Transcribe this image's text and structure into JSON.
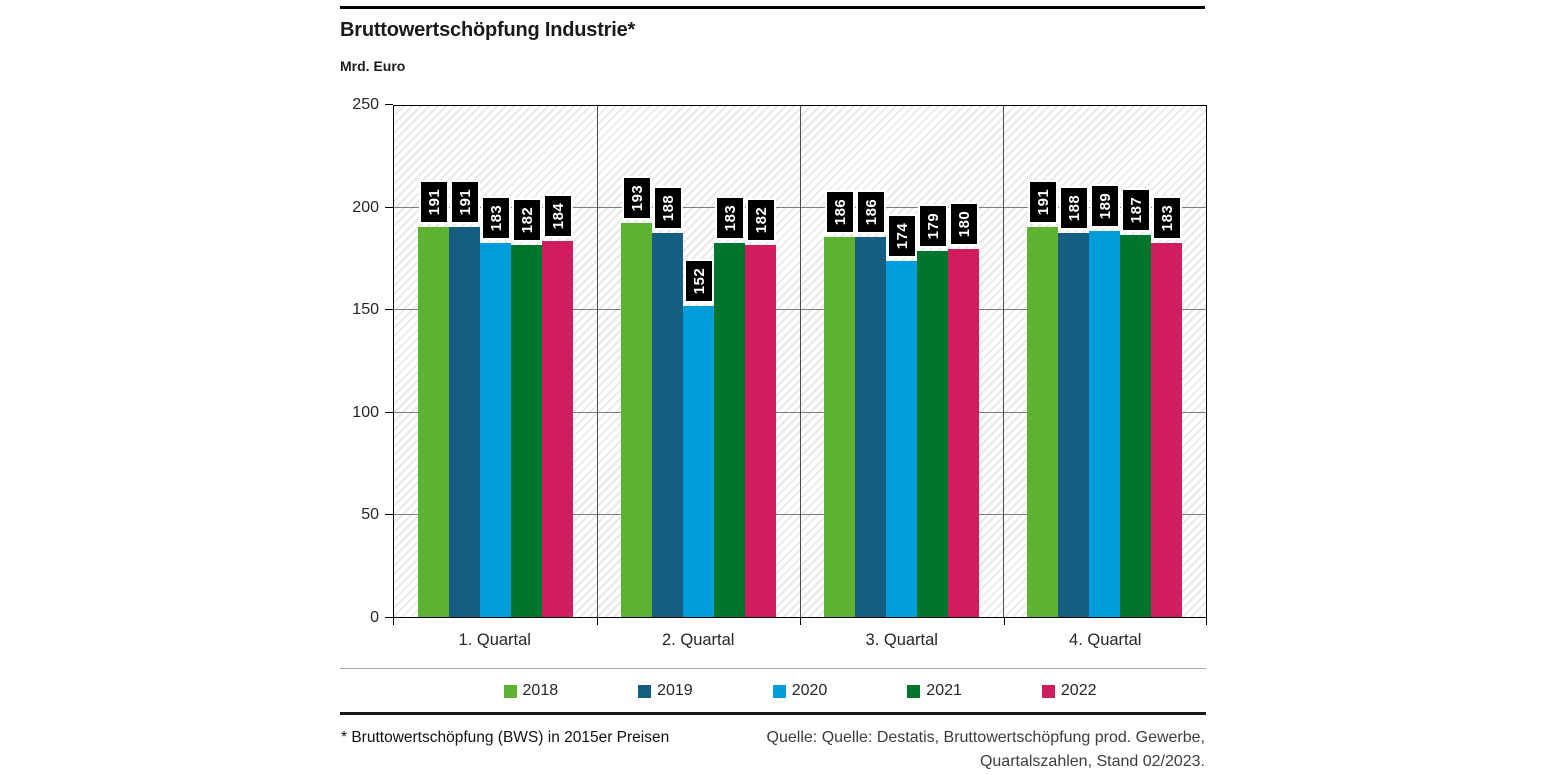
{
  "chart_data": {
    "type": "bar",
    "title": "Bruttowertschöpfung Industrie*",
    "ylabel": "Mrd. Euro",
    "xlabel": "",
    "categories": [
      "1. Quartal",
      "2. Quartal",
      "3. Quartal",
      "4. Quartal"
    ],
    "series": [
      {
        "name": "2018",
        "color": "#5db32f",
        "values": [
          191,
          193,
          186,
          191
        ]
      },
      {
        "name": "2019",
        "color": "#155d81",
        "values": [
          191,
          188,
          186,
          188
        ]
      },
      {
        "name": "2020",
        "color": "#009ddc",
        "values": [
          183,
          152,
          174,
          189
        ]
      },
      {
        "name": "2021",
        "color": "#00762c",
        "values": [
          182,
          183,
          179,
          187
        ]
      },
      {
        "name": "2022",
        "color": "#d01d5e",
        "values": [
          184,
          182,
          180,
          183
        ]
      }
    ],
    "ylim": [
      0,
      250
    ],
    "yticks": [
      0,
      50,
      100,
      150,
      200,
      250
    ],
    "grid": "horizontal gridlines at y-ticks, vertical separators between categories",
    "plot_background": "light diagonal hatch",
    "legend_position": "bottom",
    "value_labels": "rotated 90deg, white bold text on black boxes above bars"
  },
  "footer": {
    "footnote": "* Bruttowertschöpfung (BWS) in 2015er Preisen",
    "source_line1": "Quelle: Quelle: Destatis, Bruttowertschöpfung prod. Gewerbe,",
    "source_line2": "Quartalszahlen, Stand 02/2023."
  }
}
